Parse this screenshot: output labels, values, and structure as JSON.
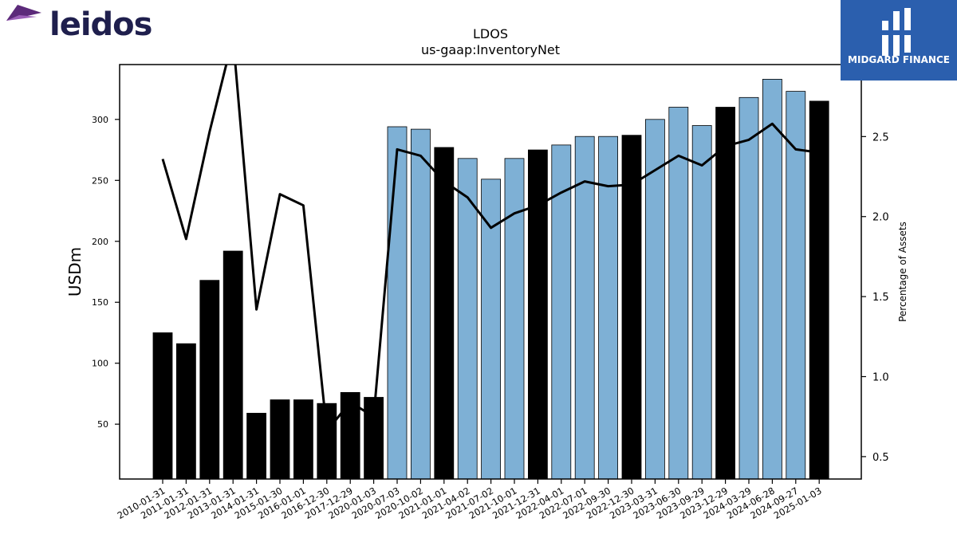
{
  "brand": {
    "left_logo_text": "leidos",
    "right_logo_text": "MIDGARD FINANCE"
  },
  "chart_data": {
    "type": "bar",
    "title": "LDOS",
    "subtitle": "us-gaap:InventoryNet",
    "ylabel": "USDm",
    "y2label": "Percentage of Assets",
    "ylim": [
      5,
      345
    ],
    "y2lim": [
      0.36,
      2.95
    ],
    "yticks": [
      50,
      100,
      150,
      200,
      250,
      300
    ],
    "y2ticks": [
      0.5,
      1.0,
      1.5,
      2.0,
      2.5
    ],
    "y2tick_labels": [
      "0.5",
      "1.0",
      "1.5",
      "2.0",
      "2.5"
    ],
    "categories": [
      "2010-01-31",
      "2011-01-31",
      "2012-01-31",
      "2013-01-31",
      "2014-01-31",
      "2015-01-30",
      "2016-01-01",
      "2016-12-30",
      "2017-12-29",
      "2020-01-03",
      "2020-07-03",
      "2020-10-02",
      "2021-01-01",
      "2021-04-02",
      "2021-07-02",
      "2021-10-01",
      "2021-12-31",
      "2022-04-01",
      "2022-07-01",
      "2022-09-30",
      "2022-12-30",
      "2023-03-31",
      "2023-06-30",
      "2023-09-29",
      "2023-12-29",
      "2024-03-29",
      "2024-06-28",
      "2024-09-27",
      "2025-01-03"
    ],
    "series": [
      {
        "values": [
          125,
          116,
          168,
          192,
          59,
          70,
          70,
          67,
          76,
          72,
          294,
          292,
          277,
          268,
          251,
          268,
          275,
          279,
          286,
          286,
          287,
          300,
          310,
          295,
          310,
          318,
          333,
          323,
          315
        ],
        "bar_type": [
          "annual",
          "annual",
          "annual",
          "annual",
          "annual",
          "annual",
          "annual",
          "annual",
          "annual",
          "annual",
          "quarterly",
          "quarterly",
          "annual",
          "quarterly",
          "quarterly",
          "quarterly",
          "annual",
          "quarterly",
          "quarterly",
          "quarterly",
          "annual",
          "quarterly",
          "quarterly",
          "quarterly",
          "annual",
          "quarterly",
          "quarterly",
          "quarterly",
          "annual"
        ]
      },
      {
        "axis": "secondary",
        "type": "line",
        "values": [
          2.36,
          1.86,
          2.53,
          3.12,
          1.42,
          2.14,
          2.07,
          0.66,
          0.84,
          0.75,
          2.42,
          2.38,
          2.22,
          2.12,
          1.93,
          2.02,
          2.07,
          2.15,
          2.22,
          2.19,
          2.2,
          2.29,
          2.38,
          2.32,
          2.44,
          2.48,
          2.58,
          2.42,
          2.4
        ]
      }
    ],
    "colors": {
      "annual": "#000000",
      "quarterly": "#7eb0d5",
      "line": "#000000"
    },
    "legend": "none",
    "grid": false
  }
}
